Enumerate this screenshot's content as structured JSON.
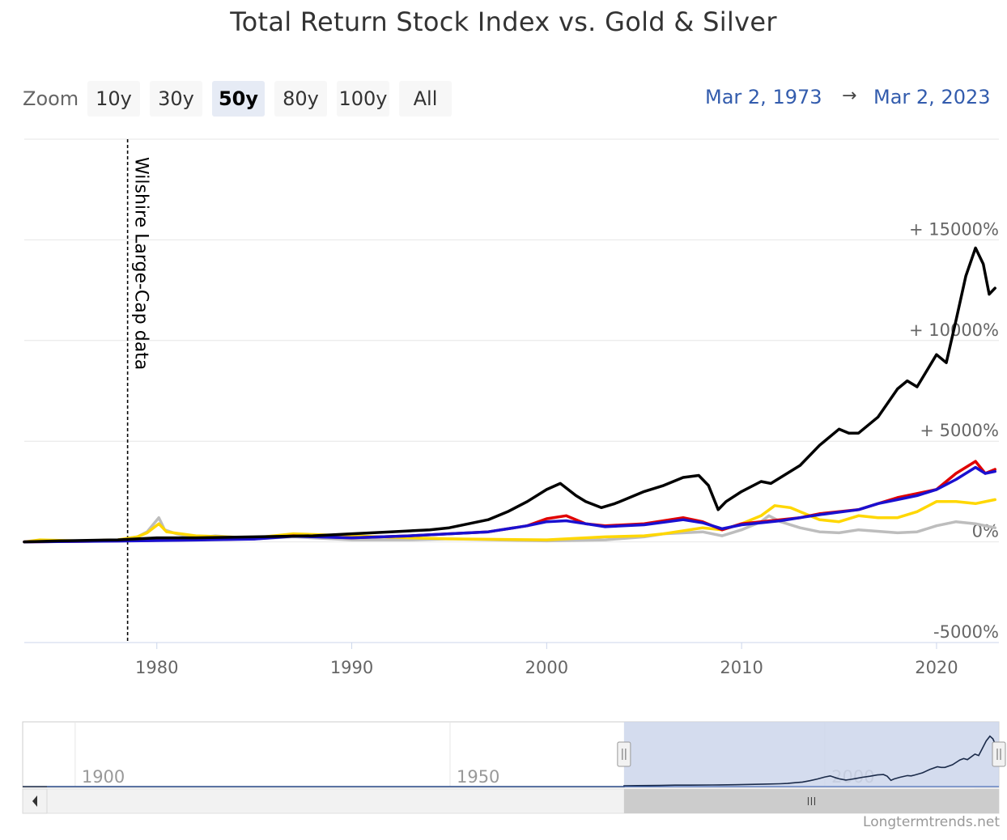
{
  "header": {
    "title": "Total Return Stock Index vs. Gold & Silver"
  },
  "zoom": {
    "label": "Zoom",
    "buttons": [
      "10y",
      "30y",
      "50y",
      "80y",
      "100y",
      "All"
    ],
    "active": "50y"
  },
  "range": {
    "from": "Mar 2, 1973",
    "arrow": "→",
    "to": "Mar 2, 2023"
  },
  "credit": "Longtermtrends.net",
  "colors": {
    "black_series": "#000000",
    "red_series": "#e00000",
    "blue_series": "#1a10d0",
    "yellow_series": "#ffd700",
    "silver_series": "#bdbdbd",
    "navigator_mask": "#ccd6eb"
  },
  "chart_data": {
    "type": "line",
    "title": "Total Return Stock Index vs. Gold & Silver",
    "xlim": [
      1973.2,
      2023.2
    ],
    "ylim": [
      -5000,
      20000
    ],
    "y_ticks": [
      {
        "value": 15000,
        "label": "+ 15000%"
      },
      {
        "value": 10000,
        "label": "+ 10000%"
      },
      {
        "value": 5000,
        "label": "+ 5000%"
      },
      {
        "value": 0,
        "label": "0%"
      },
      {
        "value": -5000,
        "label": "-5000%"
      }
    ],
    "x_ticks": [
      1980,
      1990,
      2000,
      2010,
      2020
    ],
    "annotation": {
      "x": 1978.5,
      "text": "Wilshire Large-Cap data"
    },
    "series": [
      {
        "color": "#bdbdbd",
        "x": [
          1973.2,
          1974,
          1976,
          1978,
          1979,
          1979.5,
          1980.1,
          1980.4,
          1981,
          1982,
          1983,
          1985,
          1987,
          1990,
          1993,
          1995,
          2000,
          2003,
          2005,
          2006,
          2008,
          2009,
          2010,
          2011,
          2011.4,
          2012,
          2013,
          2014,
          2015,
          2016,
          2018,
          2019,
          2020,
          2020.5,
          2021,
          2022,
          2023
        ],
        "y": [
          0,
          50,
          50,
          100,
          250,
          500,
          1200,
          600,
          400,
          200,
          300,
          150,
          250,
          100,
          100,
          150,
          50,
          100,
          250,
          400,
          500,
          300,
          600,
          1000,
          1300,
          1000,
          700,
          500,
          450,
          600,
          450,
          500,
          800,
          900,
          1000,
          900,
          700
        ]
      },
      {
        "color": "#ffd700",
        "x": [
          1973.2,
          1974,
          1976,
          1978,
          1979,
          1979.5,
          1980.1,
          1980.5,
          1982,
          1985,
          1987,
          1990,
          1993,
          1995,
          2000,
          2003,
          2005,
          2006,
          2008,
          2009,
          2010,
          2011,
          2011.7,
          2012.5,
          2013.5,
          2014,
          2015,
          2016,
          2017,
          2018,
          2019,
          2020,
          2021,
          2022,
          2023
        ],
        "y": [
          0,
          100,
          50,
          100,
          250,
          450,
          900,
          500,
          300,
          200,
          400,
          300,
          200,
          150,
          100,
          250,
          300,
          400,
          700,
          600,
          900,
          1300,
          1800,
          1700,
          1300,
          1100,
          1000,
          1300,
          1200,
          1200,
          1500,
          2000,
          2000,
          1900,
          2100
        ]
      },
      {
        "color": "#e00000",
        "x": [
          1973.2,
          1978,
          1982,
          1985,
          1987,
          1990,
          1993,
          1995,
          1997,
          1999,
          2000,
          2001,
          2002,
          2003,
          2005,
          2007,
          2008,
          2009,
          2010,
          2011,
          2012,
          2013,
          2014,
          2016,
          2017,
          2018,
          2019,
          2020,
          2021,
          2022,
          2022.5,
          2023
        ],
        "y": [
          0,
          50,
          100,
          150,
          300,
          200,
          300,
          400,
          500,
          800,
          1150,
          1300,
          900,
          800,
          900,
          1200,
          1000,
          600,
          900,
          1000,
          1100,
          1200,
          1400,
          1600,
          1900,
          2200,
          2400,
          2600,
          3400,
          4000,
          3400,
          3600
        ]
      },
      {
        "color": "#1a10d0",
        "x": [
          1973.2,
          1978,
          1982,
          1985,
          1987,
          1990,
          1993,
          1995,
          1997,
          1999,
          2000,
          2001,
          2002,
          2003,
          2005,
          2007,
          2008,
          2009,
          2010,
          2011,
          2012,
          2013,
          2014,
          2016,
          2017,
          2018,
          2019,
          2020,
          2021,
          2022,
          2022.5,
          2023
        ],
        "y": [
          0,
          40,
          90,
          140,
          280,
          200,
          300,
          400,
          500,
          800,
          1000,
          1050,
          900,
          750,
          850,
          1100,
          950,
          650,
          850,
          950,
          1050,
          1200,
          1350,
          1600,
          1900,
          2100,
          2300,
          2600,
          3100,
          3700,
          3400,
          3500
        ]
      },
      {
        "color": "#000000",
        "x": [
          1973.2,
          1975,
          1978,
          1980,
          1982,
          1985,
          1988,
          1990,
          1992,
          1994,
          1995,
          1996,
          1997,
          1998,
          1999,
          2000,
          2000.7,
          2001.5,
          2002,
          2002.8,
          2003.5,
          2004,
          2005,
          2006,
          2007,
          2007.8,
          2008.3,
          2008.8,
          2009.2,
          2010,
          2011,
          2011.5,
          2012,
          2013,
          2014,
          2015,
          2015.5,
          2016,
          2017,
          2018,
          2018.5,
          2019,
          2019.5,
          2020,
          2020.5,
          2021,
          2021.5,
          2022,
          2022.4,
          2022.7,
          2023
        ],
        "y": [
          0,
          50,
          100,
          200,
          200,
          250,
          300,
          400,
          500,
          600,
          700,
          900,
          1100,
          1500,
          2000,
          2600,
          2900,
          2300,
          2000,
          1700,
          1900,
          2100,
          2500,
          2800,
          3200,
          3300,
          2800,
          1600,
          2000,
          2500,
          3000,
          2900,
          3200,
          3800,
          4800,
          5600,
          5400,
          5400,
          6200,
          7600,
          8000,
          7700,
          8500,
          9300,
          8900,
          11000,
          13200,
          14600,
          13800,
          12300,
          12600
        ]
      }
    ],
    "navigator": {
      "x_ticks": [
        1900,
        1950,
        2000
      ],
      "selected_range": [
        1973.2,
        2023.2
      ],
      "x_range": [
        1893,
        2023.2
      ]
    }
  }
}
